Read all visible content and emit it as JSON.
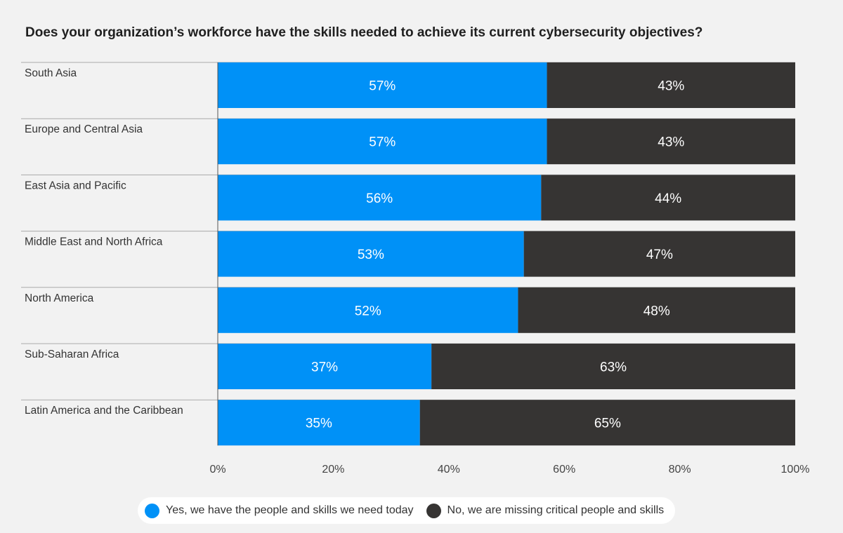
{
  "chart_data": {
    "type": "bar",
    "orientation": "horizontal",
    "stacked": true,
    "title": "Does your organization’s workforce have the skills needed to achieve its current cybersecurity objectives?",
    "categories": [
      "South Asia",
      "Europe and Central Asia",
      "East Asia and Pacific",
      "Middle East and North Africa",
      "North America",
      "Sub-Saharan Africa",
      "Latin America and the Caribbean"
    ],
    "series": [
      {
        "name": "Yes, we have the people and skills we need today",
        "color": "#0091f7",
        "values": [
          57,
          57,
          56,
          53,
          52,
          37,
          35
        ],
        "labels": [
          "57%",
          "57%",
          "56%",
          "53%",
          "52%",
          "37%",
          "35%"
        ]
      },
      {
        "name": "No, we are missing critical people and skills",
        "color": "#363433",
        "values": [
          43,
          43,
          44,
          47,
          48,
          63,
          65
        ],
        "labels": [
          "43%",
          "43%",
          "44%",
          "47%",
          "48%",
          "63%",
          "65%"
        ]
      }
    ],
    "xlim": [
      0,
      100
    ],
    "xticks": [
      0,
      20,
      40,
      60,
      80,
      100
    ],
    "xtick_labels": [
      "0%",
      "20%",
      "40%",
      "60%",
      "80%",
      "100%"
    ],
    "xlabel": "",
    "ylabel": "",
    "grid": false,
    "legend": "bottom"
  }
}
